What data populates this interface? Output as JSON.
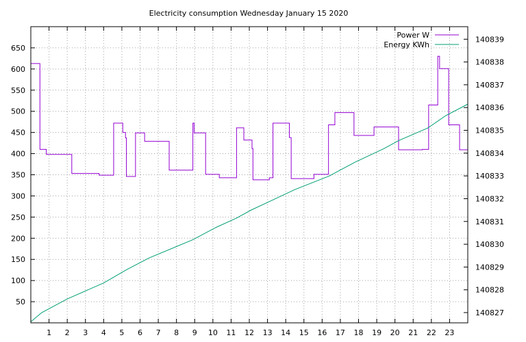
{
  "chart_data": {
    "type": "line",
    "title": "Electricity consumption Wednesday January 15 2020",
    "xlabel": "",
    "ylabel": "",
    "grid": true,
    "legend_position": "top-right",
    "x_range": [
      0,
      24
    ],
    "x_ticks": [
      1,
      2,
      3,
      4,
      5,
      6,
      7,
      8,
      9,
      10,
      11,
      12,
      13,
      14,
      15,
      16,
      17,
      18,
      19,
      20,
      21,
      22,
      23
    ],
    "y_left_range": [
      0,
      700
    ],
    "y_left_ticks": [
      50,
      100,
      150,
      200,
      250,
      300,
      350,
      400,
      450,
      500,
      550,
      600,
      650
    ],
    "y_right_range": [
      140826.55,
      140839.55
    ],
    "y_right_ticks": [
      140827,
      140828,
      140829,
      140830,
      140831,
      140832,
      140833,
      140834,
      140835,
      140836,
      140837,
      140838,
      140839
    ],
    "series": [
      {
        "name": "Power W",
        "color": "#9400d3",
        "axis": "left",
        "step": true,
        "points": [
          [
            0.0,
            613
          ],
          [
            0.5,
            613
          ],
          [
            0.5,
            410
          ],
          [
            0.85,
            410
          ],
          [
            0.85,
            398
          ],
          [
            2.25,
            398
          ],
          [
            2.25,
            353
          ],
          [
            3.75,
            353
          ],
          [
            3.75,
            349
          ],
          [
            4.55,
            349
          ],
          [
            4.55,
            472
          ],
          [
            5.05,
            472
          ],
          [
            5.05,
            450
          ],
          [
            5.2,
            450
          ],
          [
            5.2,
            437
          ],
          [
            5.25,
            437
          ],
          [
            5.25,
            346
          ],
          [
            5.75,
            346
          ],
          [
            5.75,
            449
          ],
          [
            6.25,
            449
          ],
          [
            6.25,
            429
          ],
          [
            7.6,
            429
          ],
          [
            7.6,
            361
          ],
          [
            8.9,
            361
          ],
          [
            8.9,
            472
          ],
          [
            8.97,
            472
          ],
          [
            8.97,
            449
          ],
          [
            9.6,
            449
          ],
          [
            9.6,
            351
          ],
          [
            10.35,
            351
          ],
          [
            10.35,
            343
          ],
          [
            11.3,
            343
          ],
          [
            11.3,
            461
          ],
          [
            11.7,
            461
          ],
          [
            11.7,
            432
          ],
          [
            12.15,
            432
          ],
          [
            12.15,
            412
          ],
          [
            12.2,
            412
          ],
          [
            12.2,
            338
          ],
          [
            13.1,
            338
          ],
          [
            13.1,
            343
          ],
          [
            13.3,
            343
          ],
          [
            13.3,
            472
          ],
          [
            14.2,
            472
          ],
          [
            14.2,
            438
          ],
          [
            14.3,
            438
          ],
          [
            14.3,
            341
          ],
          [
            15.55,
            341
          ],
          [
            15.55,
            351
          ],
          [
            16.35,
            351
          ],
          [
            16.35,
            468
          ],
          [
            16.7,
            468
          ],
          [
            16.7,
            497
          ],
          [
            17.75,
            497
          ],
          [
            17.75,
            443
          ],
          [
            18.85,
            443
          ],
          [
            18.85,
            463
          ],
          [
            20.2,
            463
          ],
          [
            20.2,
            409
          ],
          [
            21.5,
            409
          ],
          [
            21.5,
            410
          ],
          [
            21.85,
            410
          ],
          [
            21.85,
            515
          ],
          [
            22.35,
            515
          ],
          [
            22.35,
            630
          ],
          [
            22.45,
            630
          ],
          [
            22.45,
            601
          ],
          [
            22.95,
            601
          ],
          [
            22.95,
            468
          ],
          [
            23.55,
            468
          ],
          [
            23.55,
            409
          ],
          [
            24.0,
            409
          ]
        ]
      },
      {
        "name": "Energy KWh",
        "color": "#009e73",
        "axis": "right",
        "step": false,
        "points": [
          [
            0.0,
            140826.6
          ],
          [
            0.6,
            140827.0
          ],
          [
            2.0,
            140827.6
          ],
          [
            4.0,
            140828.3
          ],
          [
            5.3,
            140828.9
          ],
          [
            6.5,
            140829.4
          ],
          [
            8.9,
            140830.2
          ],
          [
            10.2,
            140830.75
          ],
          [
            11.3,
            140831.15
          ],
          [
            12.1,
            140831.5
          ],
          [
            13.3,
            140831.95
          ],
          [
            14.5,
            140832.4
          ],
          [
            16.4,
            140833.0
          ],
          [
            17.8,
            140833.6
          ],
          [
            19.4,
            140834.2
          ],
          [
            20.2,
            140834.55
          ],
          [
            21.8,
            140835.1
          ],
          [
            22.8,
            140835.65
          ],
          [
            24.0,
            140836.15
          ]
        ]
      }
    ]
  }
}
